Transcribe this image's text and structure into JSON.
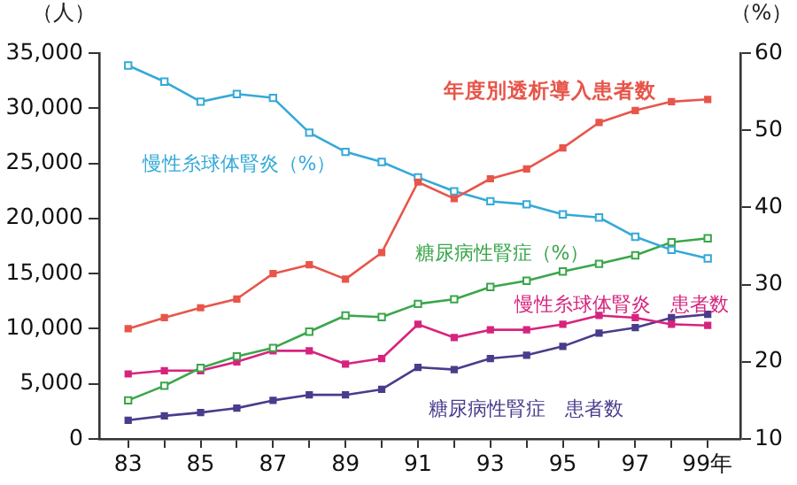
{
  "chart_data": {
    "type": "line",
    "ylabel": "（人）",
    "y2label": "（%）",
    "x": [
      83,
      84,
      85,
      86,
      87,
      88,
      89,
      90,
      91,
      92,
      93,
      94,
      95,
      96,
      97,
      98,
      99
    ],
    "xlim": [
      82.2,
      99.9
    ],
    "xticks": [
      83,
      {
        "value": 84,
        "label": null
      },
      85,
      {
        "value": 86,
        "label": null
      },
      87,
      {
        "value": 88,
        "label": null
      },
      89,
      {
        "value": 90,
        "label": null
      },
      91,
      {
        "value": 92,
        "label": null
      },
      93,
      {
        "value": 94,
        "label": null
      },
      95,
      {
        "value": 96,
        "label": null
      },
      97,
      {
        "value": 98,
        "label": null
      },
      {
        "value": 99,
        "label": "99年"
      }
    ],
    "ylim": [
      0,
      35000
    ],
    "yticks": [
      0,
      {
        "value": 5000,
        "label": "5,000"
      },
      {
        "value": 10000,
        "label": "10,000"
      },
      {
        "value": 15000,
        "label": "15,000"
      },
      {
        "value": 20000,
        "label": "20,000"
      },
      {
        "value": 25000,
        "label": "25,000"
      },
      {
        "value": 30000,
        "label": "30,000"
      },
      {
        "value": 35000,
        "label": "35,000"
      }
    ],
    "y2lim": [
      10,
      60
    ],
    "y2ticks": [
      10,
      20,
      30,
      40,
      50,
      60
    ],
    "grid": false,
    "legend": false,
    "marker": "square",
    "line_style": "solid",
    "series": [
      {
        "name": "年度別透析導入患者数",
        "color": "#e8554a",
        "values": [
          10000,
          11000,
          11900,
          12700,
          15000,
          15800,
          14500,
          16900,
          23300,
          21800,
          23600,
          24500,
          26400,
          28700,
          29800,
          30600,
          30800
        ]
      },
      {
        "name": "慢性糸球体腎炎（%）",
        "color": "#35a9d8",
        "axis": "y2",
        "values": [
          58.4,
          56.3,
          53.7,
          54.7,
          54.2,
          49.7,
          47.2,
          45.9,
          43.9,
          42.1,
          40.8,
          40.4,
          39.1,
          38.7,
          36.2,
          34.5,
          33.4
        ]
      },
      {
        "name": "糖尿病性腎症（%）",
        "color": "#3aa64a",
        "axis": "y2",
        "values": [
          15.0,
          16.9,
          19.2,
          20.7,
          21.8,
          23.9,
          26.0,
          25.8,
          27.5,
          28.1,
          29.7,
          30.5,
          31.7,
          32.7,
          33.8,
          35.5,
          36.0
        ]
      },
      {
        "name": "慢性糸球体腎炎　患者数",
        "color": "#d6247e",
        "values": [
          5900,
          6200,
          6200,
          7000,
          8000,
          8000,
          6800,
          7300,
          10400,
          9200,
          9900,
          9900,
          10400,
          11200,
          11000,
          10400,
          10300
        ]
      },
      {
        "name": "糖尿病性腎症　患者数",
        "color": "#4a3c8c",
        "values": [
          1700,
          2100,
          2400,
          2800,
          3500,
          4000,
          4000,
          4500,
          6500,
          6300,
          7300,
          7600,
          8400,
          9600,
          10100,
          11000,
          11300
        ]
      }
    ]
  }
}
